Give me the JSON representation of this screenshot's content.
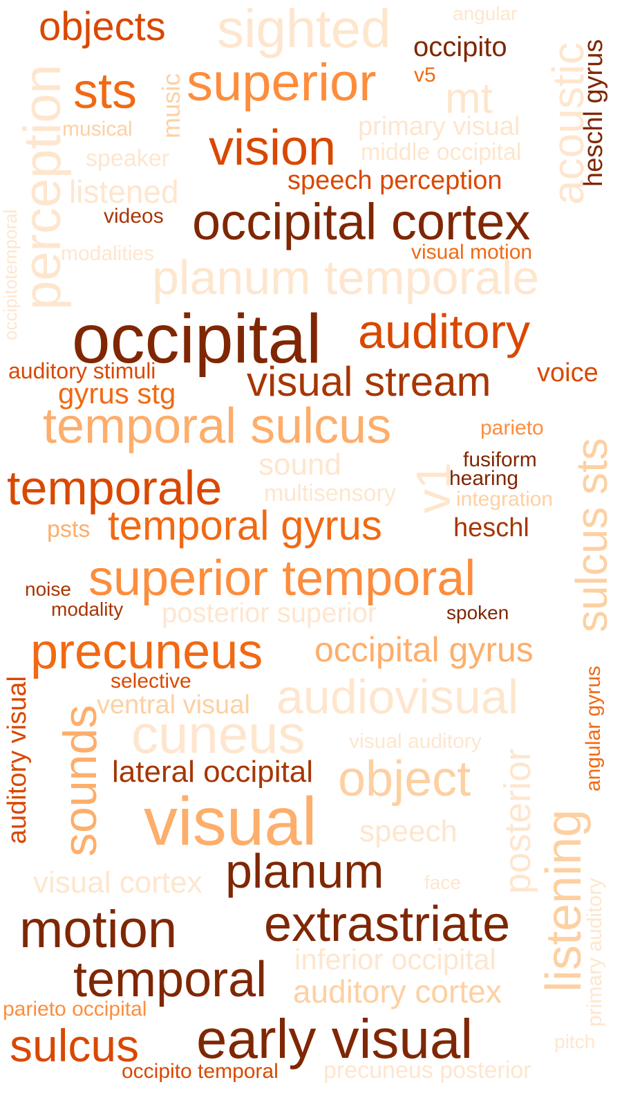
{
  "palette": {
    "c0": "#fee6ce",
    "c1": "#fdd0a2",
    "c2": "#fdae6b",
    "c3": "#fd8d3c",
    "c4": "#f16913",
    "c5": "#d94801",
    "c6": "#a63603",
    "c7": "#7f2704"
  },
  "words": [
    {
      "text": "objects",
      "color": "c5"
    },
    {
      "text": "sighted",
      "color": "c0"
    },
    {
      "text": "angular",
      "color": "c0"
    },
    {
      "text": "occipito",
      "color": "c7"
    },
    {
      "text": "acoustic",
      "color": "c0"
    },
    {
      "text": "heschl gyrus",
      "color": "c7"
    },
    {
      "text": "sts",
      "color": "c4"
    },
    {
      "text": "music",
      "color": "c1"
    },
    {
      "text": "superior",
      "color": "c3"
    },
    {
      "text": "v5",
      "color": "c4"
    },
    {
      "text": "mt",
      "color": "c0"
    },
    {
      "text": "perception",
      "color": "c0"
    },
    {
      "text": "musical",
      "color": "c1"
    },
    {
      "text": "primary visual",
      "color": "c0"
    },
    {
      "text": "vision",
      "color": "c5"
    },
    {
      "text": "middle occipital",
      "color": "c0"
    },
    {
      "text": "speaker",
      "color": "c0"
    },
    {
      "text": "speech perception",
      "color": "c5"
    },
    {
      "text": "listened",
      "color": "c0"
    },
    {
      "text": "occipitotemporal",
      "color": "c0"
    },
    {
      "text": "videos",
      "color": "c6"
    },
    {
      "text": "occipital cortex",
      "color": "c7"
    },
    {
      "text": "modalities",
      "color": "c0"
    },
    {
      "text": "visual motion",
      "color": "c4"
    },
    {
      "text": "planum temporale",
      "color": "c0"
    },
    {
      "text": "occipital",
      "color": "c7"
    },
    {
      "text": "auditory",
      "color": "c5"
    },
    {
      "text": "auditory stimuli",
      "color": "c5"
    },
    {
      "text": "visual stream",
      "color": "c6"
    },
    {
      "text": "voice",
      "color": "c5"
    },
    {
      "text": "gyrus stg",
      "color": "c4"
    },
    {
      "text": "temporal sulcus",
      "color": "c2"
    },
    {
      "text": "parieto",
      "color": "c3"
    },
    {
      "text": "sulcus sts",
      "color": "c1"
    },
    {
      "text": "sound",
      "color": "c0"
    },
    {
      "text": "fusiform",
      "color": "c7"
    },
    {
      "text": "v1",
      "color": "c0"
    },
    {
      "text": "hearing",
      "color": "c7"
    },
    {
      "text": "temporale",
      "color": "c5"
    },
    {
      "text": "multisensory",
      "color": "c0"
    },
    {
      "text": "integration",
      "color": "c1"
    },
    {
      "text": "psts",
      "color": "c2"
    },
    {
      "text": "temporal gyrus",
      "color": "c4"
    },
    {
      "text": "heschl",
      "color": "c6"
    },
    {
      "text": "superior temporal",
      "color": "c3"
    },
    {
      "text": "noise",
      "color": "c6"
    },
    {
      "text": "modality",
      "color": "c6"
    },
    {
      "text": "posterior superior",
      "color": "c0"
    },
    {
      "text": "spoken",
      "color": "c7"
    },
    {
      "text": "auditory visual",
      "color": "c5"
    },
    {
      "text": "precuneus",
      "color": "c4"
    },
    {
      "text": "occipital gyrus",
      "color": "c2"
    },
    {
      "text": "angular gyrus",
      "color": "c4"
    },
    {
      "text": "selective",
      "color": "c5"
    },
    {
      "text": "sounds",
      "color": "c2"
    },
    {
      "text": "ventral visual",
      "color": "c1"
    },
    {
      "text": "audiovisual",
      "color": "c0"
    },
    {
      "text": "cuneus",
      "color": "c0"
    },
    {
      "text": "visual auditory",
      "color": "c0"
    },
    {
      "text": "lateral occipital",
      "color": "c6"
    },
    {
      "text": "object",
      "color": "c1"
    },
    {
      "text": "posterior",
      "color": "c0"
    },
    {
      "text": "primary auditory",
      "color": "c0"
    },
    {
      "text": "visual",
      "color": "c2"
    },
    {
      "text": "speech",
      "color": "c0"
    },
    {
      "text": "listening",
      "color": "c1"
    },
    {
      "text": "planum",
      "color": "c7"
    },
    {
      "text": "visual cortex",
      "color": "c0"
    },
    {
      "text": "face",
      "color": "c0"
    },
    {
      "text": "motion",
      "color": "c7"
    },
    {
      "text": "extrastriate",
      "color": "c7"
    },
    {
      "text": "inferior occipital",
      "color": "c0"
    },
    {
      "text": "temporal",
      "color": "c7"
    },
    {
      "text": "auditory cortex",
      "color": "c1"
    },
    {
      "text": "parieto occipital",
      "color": "c3"
    },
    {
      "text": "sulcus",
      "color": "c5"
    },
    {
      "text": "early visual",
      "color": "c7"
    },
    {
      "text": "pitch",
      "color": "c0"
    },
    {
      "text": "occipito temporal",
      "color": "c5"
    },
    {
      "text": "precuneus posterior",
      "color": "c0"
    }
  ]
}
